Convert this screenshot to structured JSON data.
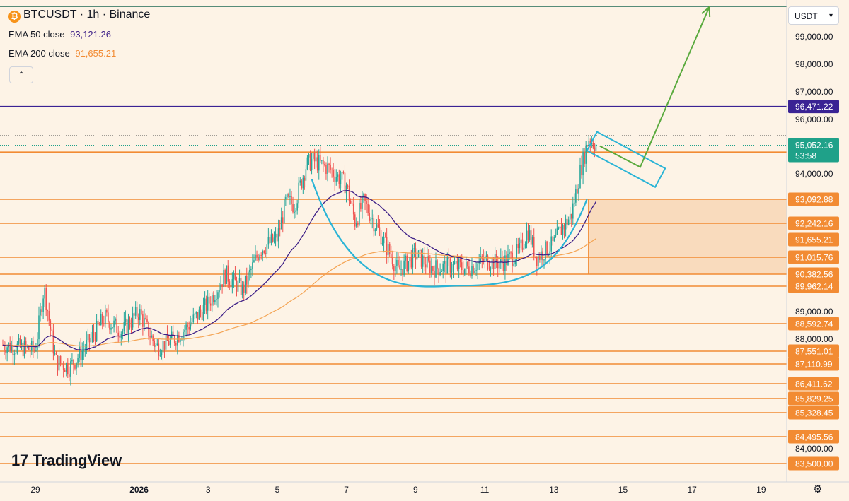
{
  "header": {
    "symbol_title": "BTCUSDT · 1h · Binance",
    "coin_icon": "bitcoin-icon",
    "ema50_label": "EMA 50 close",
    "ema50_value": "93,121.26",
    "ema200_label": "EMA 200 close",
    "ema200_value": "91,655.21",
    "collapse_icon": "chevron-up-icon"
  },
  "currency_selector": {
    "value": "USDT",
    "icon": "chevron-down-icon"
  },
  "brand": {
    "name": "TradingView"
  },
  "settings_icon": "gear-icon",
  "colors": {
    "background": "#fdf3e6",
    "level": "#f28b33",
    "level_label": "#f28b33",
    "resistance": "#3a2394",
    "current_price": "#1fa189",
    "ema50": "#3d1f87",
    "ema200": "#f4a454",
    "cup": "#2ab4d6",
    "arrow": "#5aaa3e",
    "candle_up": "#26a69a",
    "candle_down": "#ef5350",
    "zone": "#f6c79a",
    "top_line": "#1f6b55"
  },
  "chart_data": {
    "type": "candlestick",
    "symbol": "BTCUSDT",
    "interval": "1h",
    "exchange": "Binance",
    "y_ticks": [
      99000,
      98000,
      97000,
      96000,
      94000,
      89000,
      88000,
      84000
    ],
    "y_tick_labels": [
      "99,000.00",
      "98,000.00",
      "97,000.00",
      "96,000.00",
      "94,000.00",
      "89,000.00",
      "88,000.00",
      "84,000.00"
    ],
    "x_ticks": [
      {
        "label": "29",
        "x": "2025-12-29"
      },
      {
        "label": "2026",
        "x": "2026-01-01"
      },
      {
        "label": "3",
        "x": "2026-01-03"
      },
      {
        "label": "5",
        "x": "2026-01-05"
      },
      {
        "label": "7",
        "x": "2026-01-07"
      },
      {
        "label": "9",
        "x": "2026-01-09"
      },
      {
        "label": "11",
        "x": "2026-01-11"
      },
      {
        "label": "13",
        "x": "2026-01-13"
      },
      {
        "label": "15",
        "x": "2026-01-15"
      },
      {
        "label": "17",
        "x": "2026-01-17"
      },
      {
        "label": "19",
        "x": "2026-01-19"
      }
    ],
    "levels": [
      {
        "price": 96471.22,
        "label": "96,471.22",
        "role": "resistance"
      },
      {
        "price": 95052.16,
        "label": "95,052.16",
        "role": "current"
      },
      {
        "price": 94800,
        "label": "",
        "role": "level"
      },
      {
        "price": 93092.88,
        "label": "93,092.88",
        "role": "level"
      },
      {
        "price": 92242.16,
        "label": "92,242.16",
        "role": "level"
      },
      {
        "price": 91655.21,
        "label": "91,655.21",
        "role": "ema200"
      },
      {
        "price": 91015.76,
        "label": "91,015.76",
        "role": "level"
      },
      {
        "price": 90382.56,
        "label": "90,382.56",
        "role": "level"
      },
      {
        "price": 89962.14,
        "label": "89,962.14",
        "role": "level"
      },
      {
        "price": 88592.74,
        "label": "88,592.74",
        "role": "level"
      },
      {
        "price": 87551.01,
        "label": "87,551.01",
        "role": "level"
      },
      {
        "price": 87110.99,
        "label": "87,110.99",
        "role": "level"
      },
      {
        "price": 86411.62,
        "label": "86,411.62",
        "role": "level"
      },
      {
        "price": 85829.25,
        "label": "85,829.25",
        "role": "level"
      },
      {
        "price": 85328.45,
        "label": "85,328.45",
        "role": "level"
      },
      {
        "price": 84495.56,
        "label": "84,495.56",
        "role": "level"
      },
      {
        "price": 83500.0,
        "label": "83,500.00",
        "role": "level"
      }
    ],
    "countdown": "53:58",
    "ema50_value": 93121.26,
    "ema200_value": 91655.21,
    "price_path": [
      [
        "2025-12-28",
        87800
      ],
      [
        "2025-12-29",
        87600
      ],
      [
        "2025-12-29 06:00",
        89900
      ],
      [
        "2025-12-29 14:00",
        87200
      ],
      [
        "2025-12-30",
        87000
      ],
      [
        "2025-12-30 12:00",
        87800
      ],
      [
        "2025-12-31",
        88800
      ],
      [
        "2025-12-31 12:00",
        88300
      ],
      [
        "2026-01-01",
        89000
      ],
      [
        "2026-01-01 12:00",
        87700
      ],
      [
        "2026-01-02",
        88000
      ],
      [
        "2026-01-02 12:00",
        88600
      ],
      [
        "2026-01-03",
        89300
      ],
      [
        "2026-01-03 12:00",
        90400
      ],
      [
        "2026-01-04",
        89800
      ],
      [
        "2026-01-04 12:00",
        91300
      ],
      [
        "2026-01-05",
        91700
      ],
      [
        "2026-01-05 06:00",
        93000
      ],
      [
        "2026-01-05 12:00",
        92900
      ],
      [
        "2026-01-05 20:00",
        94300
      ],
      [
        "2026-01-06",
        94500
      ],
      [
        "2026-01-06 12:00",
        94200
      ],
      [
        "2026-01-07",
        93600
      ],
      [
        "2026-01-07 06:00",
        92300
      ],
      [
        "2026-01-07 12:00",
        93000
      ],
      [
        "2026-01-08",
        91800
      ],
      [
        "2026-01-08 12:00",
        90500
      ],
      [
        "2026-01-09",
        91100
      ],
      [
        "2026-01-09 12:00",
        90600
      ],
      [
        "2026-01-10",
        90700
      ],
      [
        "2026-01-10 12:00",
        90600
      ],
      [
        "2026-01-11",
        90900
      ],
      [
        "2026-01-11 12:00",
        90800
      ],
      [
        "2026-01-12",
        91200
      ],
      [
        "2026-01-12 06:00",
        92000
      ],
      [
        "2026-01-12 12:00",
        91000
      ],
      [
        "2026-01-13",
        91500
      ],
      [
        "2026-01-13 06:00",
        92100
      ],
      [
        "2026-01-13 12:00",
        92500
      ],
      [
        "2026-01-13 18:00",
        94000
      ],
      [
        "2026-01-14",
        95300
      ],
      [
        "2026-01-14 06:00",
        95052
      ]
    ],
    "annotations": [
      {
        "type": "cup",
        "start": [
          "2026-01-06",
          93800
        ],
        "bottom": [
          "2026-01-10 08:00",
          89980
        ],
        "end": [
          "2026-01-13 23:00",
          93092
        ]
      },
      {
        "type": "flag",
        "start": [
          "2026-01-14 06:00",
          95100
        ],
        "end": [
          "2026-01-15 12:00",
          94250
        ]
      },
      {
        "type": "projection-arrow",
        "from": [
          "2026-01-15 12:00",
          94250
        ],
        "to": [
          "2026-01-17 12:00",
          100000
        ]
      },
      {
        "type": "zone",
        "from": [
          "2026-01-14",
          93092.88
        ],
        "to": [
          "2026-01-19 23:00",
          90382.56
        ]
      }
    ]
  }
}
